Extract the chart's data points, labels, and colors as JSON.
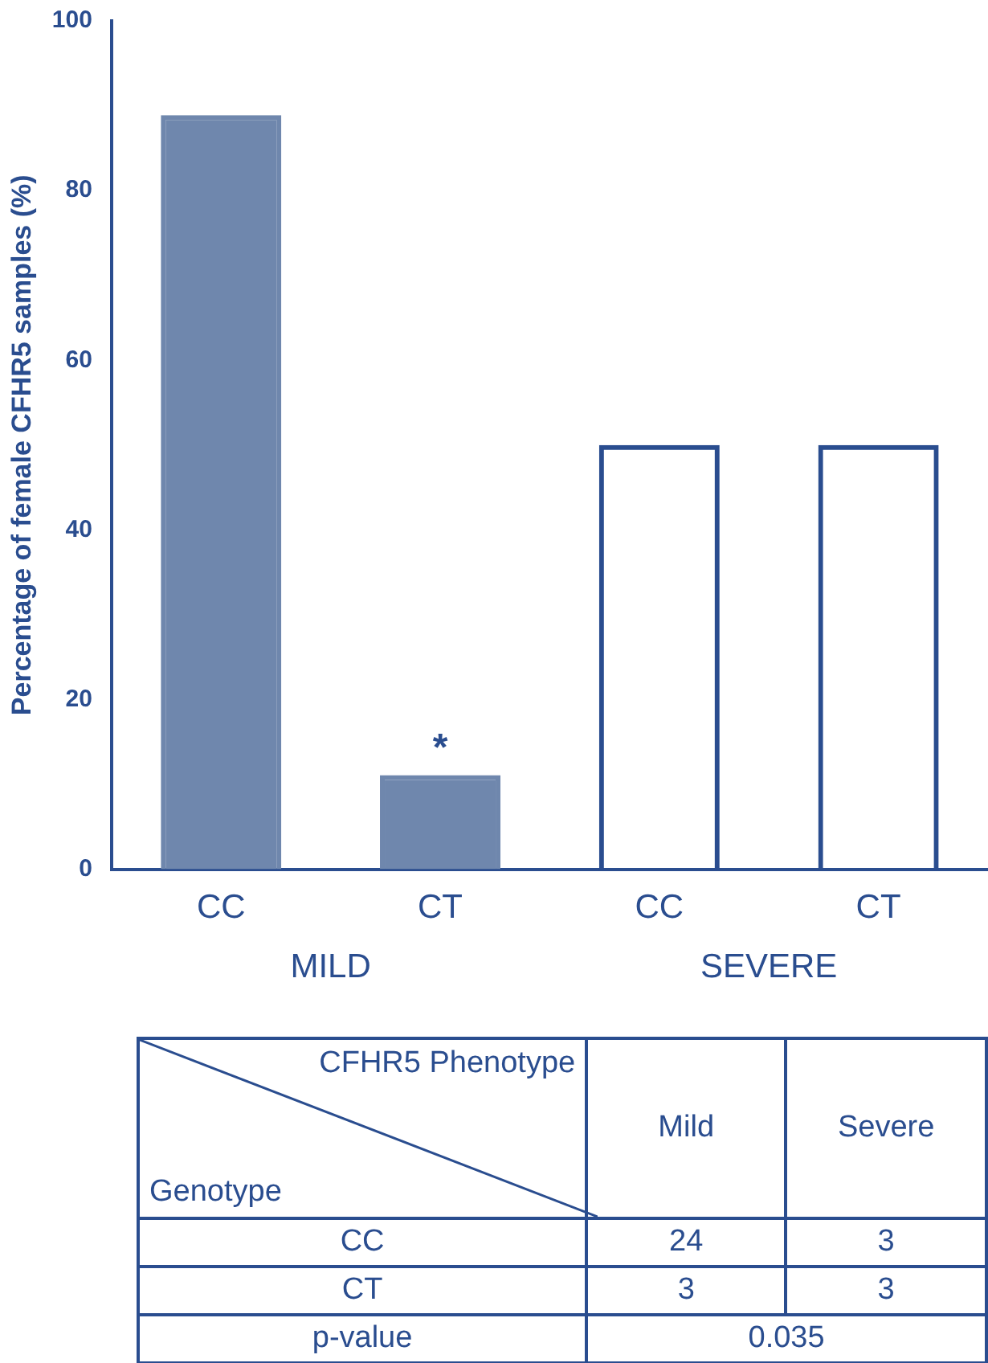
{
  "chart_data": [
    {
      "type": "bar",
      "ylabel": "Percentage of female CFHR5 samples (%)",
      "categories": [
        "CC",
        "CT",
        "CC",
        "CT"
      ],
      "values": [
        88.9,
        11.1,
        50,
        50
      ],
      "colors": [
        "#6f87ad",
        "#6f87ad",
        "#2a4d8f",
        "#2a4d8f"
      ],
      "ylim": [
        0,
        100
      ],
      "yticks": [
        0,
        20,
        40,
        60,
        80,
        100
      ],
      "grid": false,
      "legend": false,
      "value_labels": [
        null,
        "*",
        null,
        null
      ],
      "annotations": [
        "MILD",
        "SEVERE"
      ]
    },
    {
      "type": "other",
      "annotations": [
        "CFHR5 Phenotype",
        "Genotype",
        "Mild",
        "Severe",
        "CC",
        "24",
        "3",
        "CT",
        "3",
        "3",
        "p-value",
        "0.035"
      ]
    }
  ]
}
